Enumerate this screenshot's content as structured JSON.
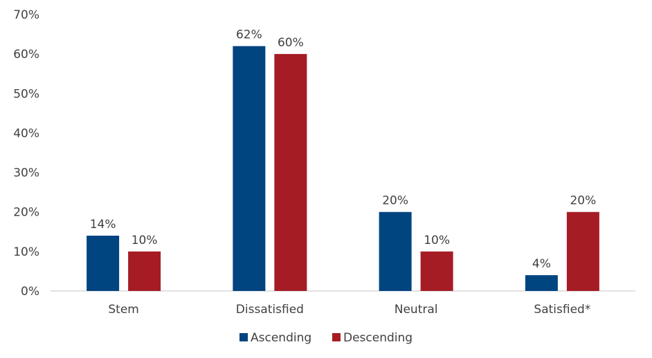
{
  "chart_data": {
    "type": "bar",
    "categories": [
      "Stem",
      "Dissatisfied",
      "Neutral",
      "Satisfied*"
    ],
    "series": [
      {
        "name": "Ascending",
        "values": [
          14,
          62,
          20,
          4
        ],
        "color": "#004480"
      },
      {
        "name": "Descending",
        "values": [
          10,
          60,
          10,
          20
        ],
        "color": "#a51c24"
      }
    ],
    "data_labels": [
      [
        "14%",
        "62%",
        "20%",
        "4%"
      ],
      [
        "10%",
        "60%",
        "10%",
        "20%"
      ]
    ],
    "y_ticks": [
      "0%",
      "10%",
      "20%",
      "30%",
      "40%",
      "50%",
      "60%",
      "70%"
    ],
    "ylim": [
      0,
      70
    ],
    "legend_position": "bottom",
    "grid": false
  }
}
